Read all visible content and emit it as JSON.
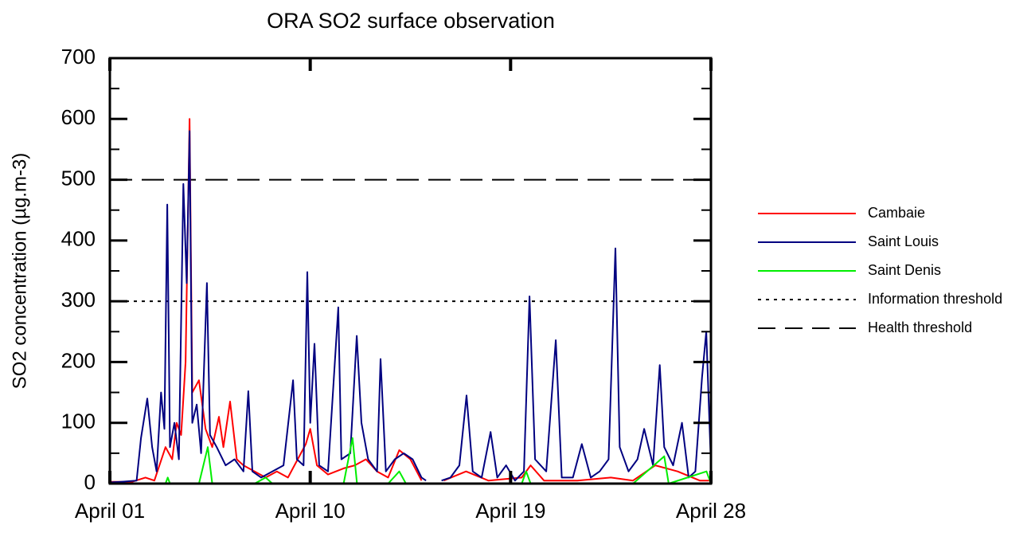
{
  "chart_data": {
    "type": "line",
    "title": "ORA SO2 surface observation",
    "ylabel": "SO2 concentration (µg.m-3)",
    "xlim": [
      1,
      28
    ],
    "xticks": [
      {
        "value": 1,
        "label": "April 01"
      },
      {
        "value": 10,
        "label": "April 10"
      },
      {
        "value": 19,
        "label": "April 19"
      },
      {
        "value": 28,
        "label": "April 28"
      }
    ],
    "ylim": [
      0,
      700
    ],
    "yticks": [
      0,
      100,
      200,
      300,
      400,
      500,
      600,
      700
    ],
    "series": [
      {
        "name": "Cambaie",
        "color": "#ff0000",
        "x": [
          1.0,
          2.0,
          2.6,
          3.0,
          3.5,
          3.8,
          4.0,
          4.2,
          4.4,
          4.58,
          4.7,
          5.0,
          5.3,
          5.6,
          5.9,
          6.1,
          6.4,
          6.7,
          7.0,
          7.5,
          8.0,
          8.5,
          9.0,
          9.8,
          10.0,
          10.3,
          10.8,
          11.5,
          12.0,
          12.5,
          13.0,
          13.5,
          14.0,
          14.5,
          15.0,
          15.5,
          16.0,
          17.0,
          18.0,
          19.5,
          19.9,
          20.5,
          22.0,
          23.5,
          24.5,
          25.5,
          26.5,
          27.5,
          28.0
        ],
        "values": [
          3,
          3,
          10,
          5,
          60,
          40,
          100,
          80,
          200,
          600,
          150,
          170,
          90,
          60,
          110,
          60,
          135,
          40,
          30,
          20,
          10,
          20,
          10,
          65,
          90,
          30,
          15,
          25,
          30,
          40,
          20,
          10,
          55,
          40,
          5,
          null,
          5,
          20,
          5,
          10,
          30,
          5,
          5,
          10,
          5,
          30,
          20,
          5,
          5
        ]
      },
      {
        "name": "Saint Louis",
        "color": "#000080",
        "x": [
          1.0,
          1.5,
          2.2,
          2.4,
          2.68,
          2.9,
          3.1,
          3.3,
          3.45,
          3.58,
          3.7,
          3.9,
          4.1,
          4.3,
          4.45,
          4.58,
          4.7,
          4.9,
          5.1,
          5.36,
          5.5,
          5.8,
          6.2,
          6.6,
          7.0,
          7.22,
          7.4,
          7.8,
          8.3,
          8.8,
          9.23,
          9.4,
          9.7,
          9.87,
          10.0,
          10.19,
          10.4,
          10.8,
          11.26,
          11.4,
          11.8,
          12.09,
          12.3,
          12.6,
          13.0,
          13.16,
          13.4,
          13.8,
          14.2,
          14.6,
          15.0,
          15.2,
          15.5,
          15.9,
          16.3,
          16.7,
          17.02,
          17.3,
          17.7,
          18.1,
          18.4,
          18.8,
          19.2,
          19.6,
          19.85,
          20.1,
          20.6,
          21.03,
          21.3,
          21.8,
          22.2,
          22.6,
          23.0,
          23.4,
          23.71,
          23.9,
          24.3,
          24.7,
          25.0,
          25.4,
          25.7,
          25.9,
          26.3,
          26.7,
          27.0,
          27.3,
          27.6,
          27.79,
          28.0
        ],
        "values": [
          2,
          3,
          5,
          75,
          140,
          60,
          20,
          150,
          90,
          459,
          60,
          100,
          40,
          493,
          330,
          580,
          100,
          130,
          50,
          330,
          80,
          60,
          30,
          40,
          20,
          152,
          20,
          10,
          20,
          30,
          170,
          40,
          30,
          348,
          100,
          230,
          30,
          20,
          290,
          40,
          50,
          243,
          100,
          40,
          20,
          205,
          20,
          40,
          50,
          40,
          10,
          5,
          null,
          5,
          10,
          30,
          145,
          20,
          10,
          85,
          10,
          30,
          5,
          20,
          308,
          40,
          20,
          236,
          10,
          10,
          65,
          10,
          20,
          40,
          387,
          60,
          20,
          40,
          90,
          30,
          195,
          60,
          30,
          100,
          10,
          20,
          175,
          250,
          30
        ]
      },
      {
        "name": "Saint Denis",
        "color": "#00ee00",
        "x": [
          1.0,
          3.5,
          3.6,
          3.7,
          5.0,
          5.4,
          5.6,
          7.5,
          8.0,
          8.3,
          11.5,
          11.9,
          12.1,
          13.5,
          14.0,
          14.3,
          15.0,
          15.5,
          16.0,
          19.5,
          19.7,
          19.9,
          24.5,
          25.9,
          26.1,
          27.8,
          28.0
        ],
        "values": [
          0,
          0,
          10,
          0,
          0,
          60,
          0,
          0,
          10,
          0,
          0,
          75,
          0,
          0,
          20,
          0,
          0,
          null,
          0,
          0,
          20,
          0,
          0,
          45,
          0,
          20,
          0
        ]
      }
    ],
    "thresholds": [
      {
        "name": "Information threshold",
        "value": 300,
        "color": "#000000",
        "dash": "dotted"
      },
      {
        "name": "Health threshold",
        "value": 500,
        "color": "#000000",
        "dash": "dashed"
      }
    ]
  }
}
